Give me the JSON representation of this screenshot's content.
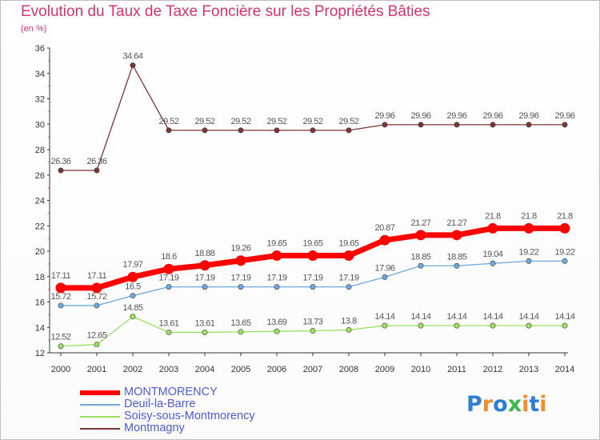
{
  "title": "Evolution du Taux de Taxe Foncière sur les Propriétés Bâties",
  "unit_label": "(en %)",
  "logo": {
    "text": "Proxiti",
    "colors": [
      "#2b7fd4",
      "#f28c28",
      "#2b7fd4",
      "#3cb54a",
      "#f28c28",
      "#2b7fd4",
      "#f28c28"
    ]
  },
  "chart_data": {
    "type": "line",
    "title": "Evolution du Taux de Taxe Foncière sur les Propriétés Bâties",
    "ylabel": "(en %)",
    "xlabel": "",
    "ylim": [
      12,
      36
    ],
    "yticks": [
      "12",
      "14",
      "16",
      "18",
      "20",
      "22",
      "24",
      "26",
      "28",
      "30",
      "32",
      "34",
      "36"
    ],
    "grid": false,
    "legend": "bottom-left",
    "categories": [
      "2000",
      "2001",
      "2002",
      "2003",
      "2004",
      "2005",
      "2006",
      "2007",
      "2008",
      "2009",
      "2010",
      "2011",
      "2012",
      "2013",
      "2014"
    ],
    "series": [
      {
        "name": "MONTMORENCY",
        "color": "#ff0000",
        "values": [
          17.11,
          17.11,
          17.97,
          18.6,
          18.88,
          19.26,
          19.65,
          19.65,
          19.65,
          20.87,
          21.27,
          21.27,
          21.8,
          21.8,
          21.8
        ],
        "labels": [
          "17.11",
          "17.11",
          "17.97",
          "18.6",
          "18.88",
          "19.26",
          "19.65",
          "19.65",
          "19.65",
          "20.87",
          "21.27",
          "21.27",
          "21.8",
          "21.8",
          "21.8"
        ]
      },
      {
        "name": "Deuil-la-Barre",
        "color": "#6fa8dc",
        "values": [
          15.72,
          15.72,
          16.5,
          17.19,
          17.19,
          17.19,
          17.19,
          17.19,
          17.19,
          17.96,
          18.85,
          18.85,
          19.04,
          19.22,
          19.22
        ],
        "labels": [
          "15.72",
          "15.72",
          "16.5",
          "17.19",
          "17.19",
          "17.19",
          "17.19",
          "17.19",
          "17.19",
          "17.96",
          "18.85",
          "18.85",
          "19.04",
          "19.22",
          "19.22"
        ]
      },
      {
        "name": "Soisy-sous-Montmorency",
        "color": "#9be063",
        "values": [
          12.52,
          12.65,
          14.85,
          13.61,
          13.61,
          13.65,
          13.69,
          13.73,
          13.8,
          14.14,
          14.14,
          14.14,
          14.14,
          14.14,
          14.14
        ],
        "labels": [
          "12.52",
          "12.65",
          "14.85",
          "13.61",
          "13.61",
          "13.65",
          "13.69",
          "13.73",
          "13.8",
          "14.14",
          "14.14",
          "14.14",
          "14.14",
          "14.14",
          "14.14"
        ]
      },
      {
        "name": "Montmagny",
        "color": "#7b3535",
        "values": [
          26.36,
          26.36,
          34.64,
          29.52,
          29.52,
          29.52,
          29.52,
          29.52,
          29.52,
          29.96,
          29.96,
          29.96,
          29.96,
          29.96,
          29.96
        ],
        "labels": [
          "26.36",
          "26.36",
          "34.64",
          "29.52",
          "29.52",
          "29.52",
          "29.52",
          "29.52",
          "29.52",
          "29.96",
          "29.96",
          "29.96",
          "29.96",
          "29.96",
          "29.96"
        ]
      }
    ]
  }
}
